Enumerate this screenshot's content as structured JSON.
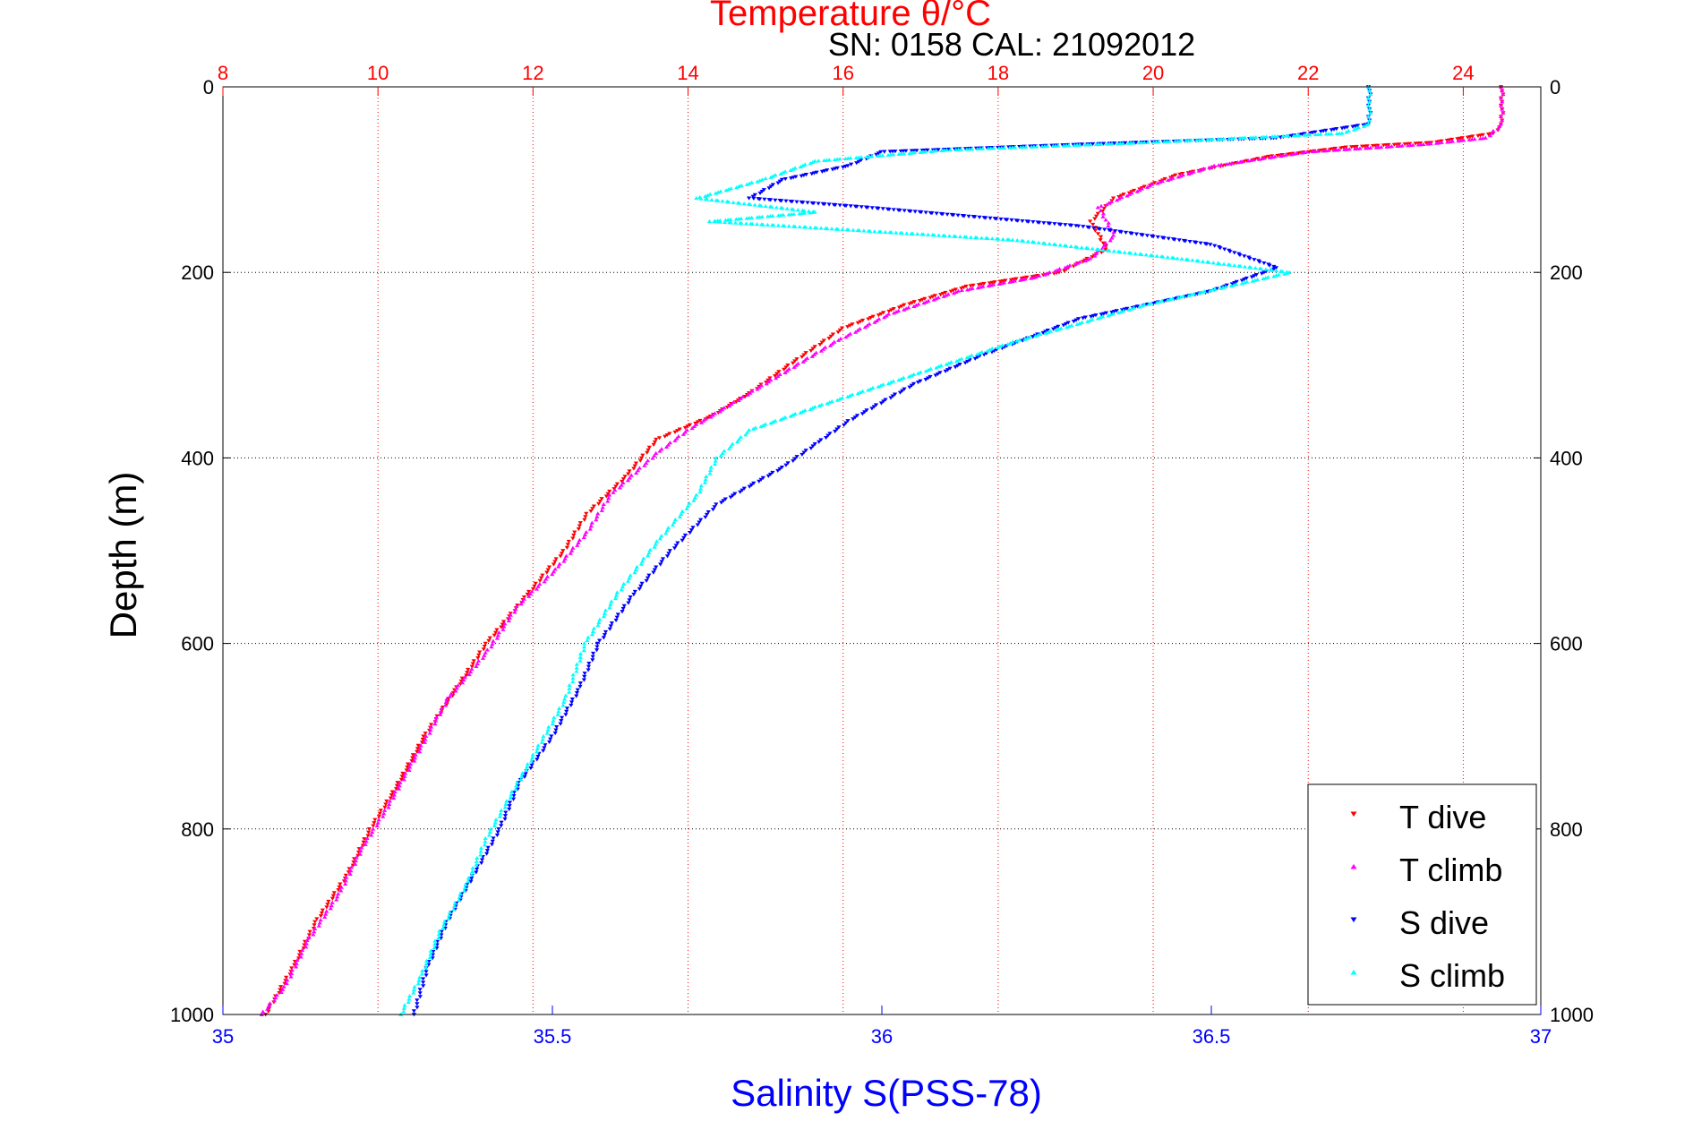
{
  "colors": {
    "temperature_axis": "#ff0000",
    "salinity_axis": "#0000ff",
    "t_dive": "#ff0000",
    "t_climb": "#ff00ff",
    "s_dive": "#0000ff",
    "s_climb": "#00ffff"
  },
  "chart_data": {
    "type": "scatter",
    "top_title": "Temperature θ/°C",
    "subtitle": "SN: 0158  CAL: 21092012",
    "xlabel_bottom": "Salinity S(PSS-78)",
    "ylabel": "Depth (m)",
    "ylim": [
      0,
      1000
    ],
    "y_reversed": true,
    "y_ticks": [
      "0",
      "200",
      "400",
      "600",
      "800",
      "1000"
    ],
    "x_top_lim": [
      8,
      25
    ],
    "x_top_ticks": [
      "8",
      "10",
      "12",
      "14",
      "16",
      "18",
      "20",
      "22",
      "24"
    ],
    "x_bottom_lim": [
      35,
      37
    ],
    "x_bottom_ticks": [
      "35",
      "35.5",
      "36",
      "36.5",
      "37"
    ],
    "grid": true,
    "legend_position": "bottom-right",
    "legend": [
      "T dive",
      "T climb",
      "S dive",
      "S climb"
    ],
    "series": [
      {
        "name": "T dive",
        "axis": "temperature",
        "marker": "triangle-down",
        "points": [
          [
            24.5,
            0
          ],
          [
            24.5,
            20
          ],
          [
            24.5,
            40
          ],
          [
            24.4,
            50
          ],
          [
            23.6,
            60
          ],
          [
            22.5,
            65
          ],
          [
            21.5,
            75
          ],
          [
            20.3,
            95
          ],
          [
            19.5,
            120
          ],
          [
            19.2,
            145
          ],
          [
            19.4,
            175
          ],
          [
            18.8,
            200
          ],
          [
            17.6,
            215
          ],
          [
            16.8,
            235
          ],
          [
            16.0,
            260
          ],
          [
            15.3,
            300
          ],
          [
            14.8,
            330
          ],
          [
            14.3,
            355
          ],
          [
            13.6,
            380
          ],
          [
            13.2,
            420
          ],
          [
            12.7,
            460
          ],
          [
            12.4,
            500
          ],
          [
            11.9,
            550
          ],
          [
            11.4,
            600
          ],
          [
            11.0,
            650
          ],
          [
            10.6,
            700
          ],
          [
            10.2,
            760
          ],
          [
            9.9,
            800
          ],
          [
            9.6,
            850
          ],
          [
            9.2,
            900
          ],
          [
            8.9,
            950
          ],
          [
            8.55,
            1000
          ]
        ]
      },
      {
        "name": "T climb",
        "axis": "temperature",
        "marker": "triangle-up",
        "points": [
          [
            24.5,
            0
          ],
          [
            24.5,
            20
          ],
          [
            24.5,
            40
          ],
          [
            24.3,
            55
          ],
          [
            23.5,
            62
          ],
          [
            22.0,
            70
          ],
          [
            20.8,
            85
          ],
          [
            20.0,
            105
          ],
          [
            19.3,
            130
          ],
          [
            19.5,
            160
          ],
          [
            19.2,
            185
          ],
          [
            18.5,
            205
          ],
          [
            17.5,
            220
          ],
          [
            16.6,
            245
          ],
          [
            15.9,
            275
          ],
          [
            15.2,
            310
          ],
          [
            14.6,
            340
          ],
          [
            14.0,
            370
          ],
          [
            13.6,
            395
          ],
          [
            13.0,
            440
          ],
          [
            12.7,
            480
          ],
          [
            12.3,
            520
          ],
          [
            11.8,
            560
          ],
          [
            11.4,
            610
          ],
          [
            10.9,
            660
          ],
          [
            10.5,
            720
          ],
          [
            10.1,
            780
          ],
          [
            9.8,
            820
          ],
          [
            9.5,
            870
          ],
          [
            9.1,
            920
          ],
          [
            8.8,
            970
          ],
          [
            8.5,
            1000
          ]
        ]
      },
      {
        "name": "S dive",
        "axis": "salinity",
        "marker": "triangle-down",
        "points": [
          [
            36.74,
            0
          ],
          [
            36.74,
            20
          ],
          [
            36.74,
            40
          ],
          [
            36.6,
            55
          ],
          [
            36.3,
            62
          ],
          [
            36.0,
            70
          ],
          [
            35.95,
            85
          ],
          [
            35.85,
            100
          ],
          [
            35.8,
            120
          ],
          [
            35.98,
            130
          ],
          [
            36.3,
            150
          ],
          [
            36.5,
            170
          ],
          [
            36.6,
            195
          ],
          [
            36.5,
            220
          ],
          [
            36.3,
            250
          ],
          [
            36.15,
            290
          ],
          [
            36.05,
            320
          ],
          [
            35.95,
            360
          ],
          [
            35.9,
            385
          ],
          [
            35.85,
            410
          ],
          [
            35.75,
            450
          ],
          [
            35.68,
            500
          ],
          [
            35.62,
            550
          ],
          [
            35.57,
            600
          ],
          [
            35.54,
            650
          ],
          [
            35.5,
            700
          ],
          [
            35.45,
            750
          ],
          [
            35.42,
            800
          ],
          [
            35.38,
            850
          ],
          [
            35.34,
            900
          ],
          [
            35.31,
            950
          ],
          [
            35.29,
            1000
          ]
        ]
      },
      {
        "name": "S climb",
        "axis": "salinity",
        "marker": "triangle-up",
        "points": [
          [
            36.74,
            0
          ],
          [
            36.74,
            20
          ],
          [
            36.74,
            40
          ],
          [
            36.7,
            50
          ],
          [
            36.4,
            60
          ],
          [
            36.1,
            68
          ],
          [
            35.9,
            80
          ],
          [
            35.82,
            100
          ],
          [
            35.72,
            120
          ],
          [
            35.9,
            135
          ],
          [
            35.74,
            145
          ],
          [
            36.2,
            165
          ],
          [
            36.45,
            185
          ],
          [
            36.62,
            200
          ],
          [
            36.4,
            235
          ],
          [
            36.2,
            275
          ],
          [
            36.05,
            310
          ],
          [
            35.9,
            345
          ],
          [
            35.8,
            370
          ],
          [
            35.75,
            400
          ],
          [
            35.72,
            440
          ],
          [
            35.66,
            490
          ],
          [
            35.6,
            545
          ],
          [
            35.55,
            600
          ],
          [
            35.52,
            660
          ],
          [
            35.48,
            710
          ],
          [
            35.44,
            760
          ],
          [
            35.4,
            810
          ],
          [
            35.37,
            860
          ],
          [
            35.33,
            910
          ],
          [
            35.3,
            960
          ],
          [
            35.27,
            1000
          ]
        ]
      }
    ]
  }
}
